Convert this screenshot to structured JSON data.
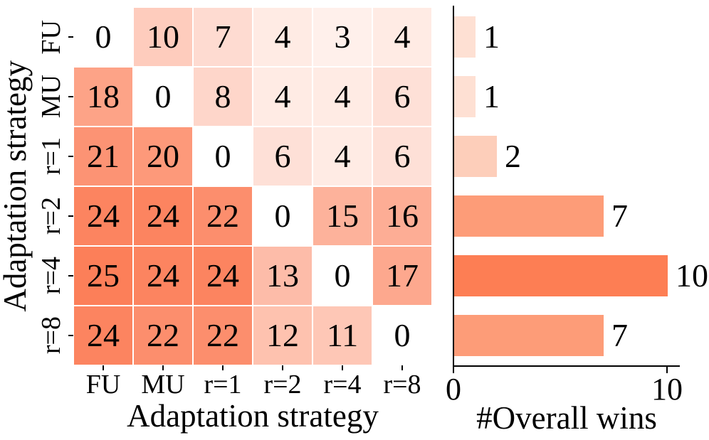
{
  "chart_data": [
    {
      "type": "heatmap",
      "title": "",
      "xlabel": "Adaptation strategy",
      "ylabel": "Adaptation strategy",
      "x_categories": [
        "FU",
        "MU",
        "r=1",
        "r=2",
        "r=4",
        "r=8"
      ],
      "y_categories": [
        "FU",
        "MU",
        "r=1",
        "r=2",
        "r=4",
        "r=8"
      ],
      "matrix": [
        [
          0,
          10,
          7,
          4,
          3,
          4
        ],
        [
          18,
          0,
          8,
          4,
          4,
          6
        ],
        [
          21,
          20,
          0,
          6,
          4,
          6
        ],
        [
          24,
          24,
          22,
          0,
          15,
          16
        ],
        [
          25,
          24,
          24,
          13,
          0,
          17
        ],
        [
          24,
          22,
          22,
          12,
          11,
          0
        ]
      ],
      "vmin": 0,
      "vmax": 25,
      "colormap": {
        "low": "#ffffff",
        "high": "#fc7f59"
      },
      "cell_gap_color": "#ffffff",
      "cell_text_color": "#000000",
      "grid": "off",
      "legend": "none"
    },
    {
      "type": "bar",
      "orientation": "horizontal",
      "title": "",
      "xlabel": "#Overall wins",
      "categories": [
        "FU",
        "MU",
        "r=1",
        "r=2",
        "r=4",
        "r=8"
      ],
      "values": [
        1,
        1,
        2,
        7,
        10,
        7
      ],
      "value_labels": [
        "1",
        "1",
        "2",
        "7",
        "10",
        "7"
      ],
      "bar_colors": [
        "#fee0d3",
        "#fee0d3",
        "#fdceba",
        "#fd9c78",
        "#fd7e54",
        "#fd9c78"
      ],
      "xlim": [
        0,
        10
      ],
      "xticks": [
        "0",
        "10"
      ],
      "grid": "off",
      "legend": "none"
    }
  ]
}
